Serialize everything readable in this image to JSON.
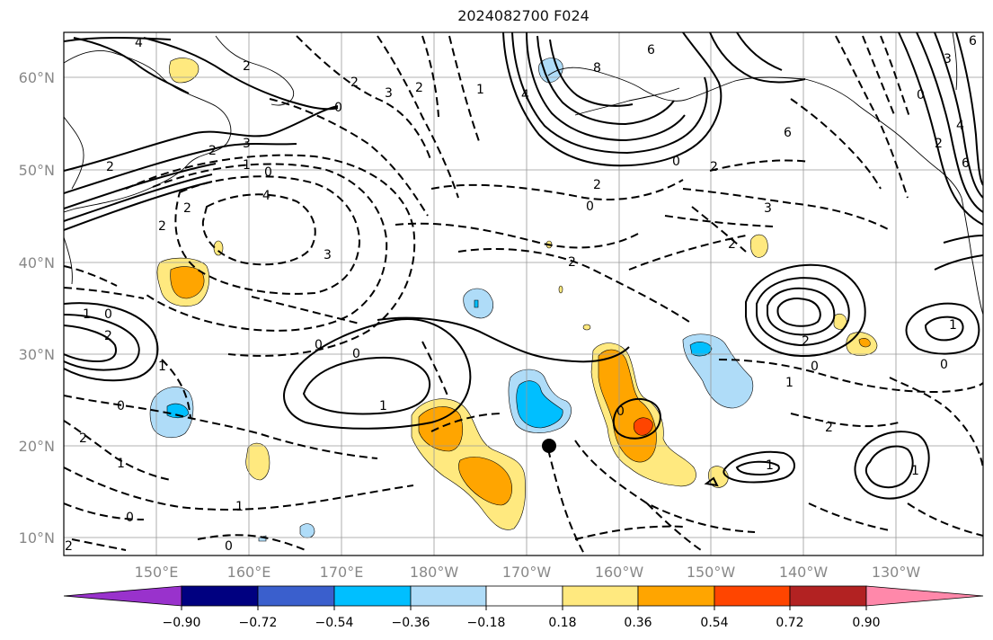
{
  "title": "2024082700 F024",
  "lat_labels": [
    "60°N",
    "50°N",
    "40°N",
    "30°N",
    "20°N",
    "10°N"
  ],
  "lon_labels": [
    "150°E",
    "160°E",
    "170°E",
    "180°W",
    "170°W",
    "160°W",
    "150°W",
    "140°W",
    "130°W"
  ],
  "colorbar": {
    "colors": [
      "#9932cc",
      "#000080",
      "#3a5fcd",
      "#00bfff",
      "#afdcf8",
      "#ffffff",
      "#ffe97f",
      "#ffa500",
      "#ff4500",
      "#b22222",
      "#ff88aa"
    ],
    "tick_labels": [
      "−0.90",
      "−0.72",
      "−0.54",
      "−0.36",
      "−0.18",
      "0.18",
      "0.36",
      "0.54",
      "0.72",
      "0.90"
    ]
  },
  "contour_labels": [
    "4",
    "2",
    "3",
    "2",
    "2",
    "1",
    "0",
    "4",
    "3",
    "2",
    "0",
    "1",
    "2",
    "6",
    "8",
    "6",
    "4",
    "3",
    "2",
    "0",
    "2",
    "0",
    "3",
    "6",
    "2",
    "4",
    "0",
    "3",
    "2",
    "6",
    "2",
    "2",
    "2",
    "0",
    "1",
    "2",
    "1",
    "0",
    "0",
    "1",
    "1",
    "0",
    "0",
    "2",
    "2",
    "0",
    "1",
    "0",
    "1",
    "2",
    "0",
    "1",
    "2",
    "0",
    "1",
    "1"
  ],
  "marker": {
    "lat": 20,
    "lon_label": "167°W"
  }
}
